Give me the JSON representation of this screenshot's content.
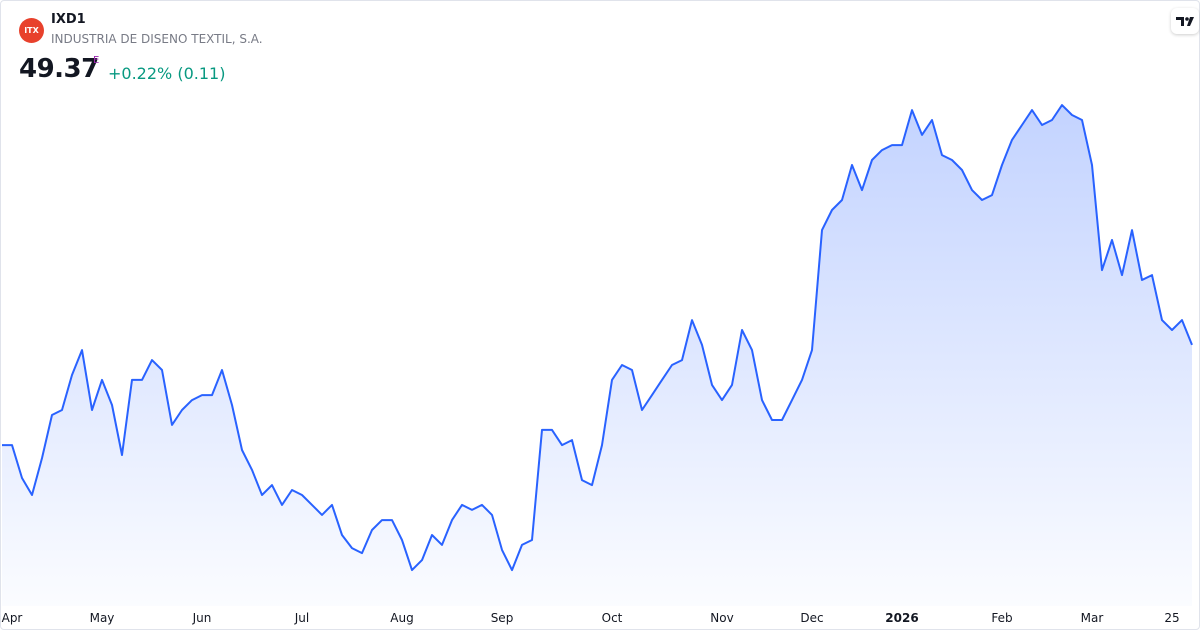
{
  "header": {
    "logo": "ITX",
    "symbol": "IXD1",
    "name": "INDUSTRIA DE DISENO TEXTIL, S.A.",
    "price": "49.37",
    "price_flag": "E",
    "change": "+0.22% (0.11)"
  },
  "chart_data": {
    "type": "area-line",
    "color": "#2962ff",
    "ylim": [
      39.5,
      59.5
    ],
    "categories": [
      null,
      "Apr",
      null,
      null,
      null,
      null,
      null,
      null,
      null,
      null,
      "May",
      null,
      null,
      null,
      null,
      null,
      null,
      null,
      null,
      null,
      "Jun",
      null,
      null,
      null,
      null,
      null,
      null,
      null,
      null,
      null,
      "Jul",
      null,
      null,
      null,
      null,
      null,
      null,
      null,
      null,
      null,
      "Aug",
      null,
      null,
      null,
      null,
      null,
      null,
      null,
      null,
      null,
      "Sep",
      null,
      null,
      null,
      null,
      null,
      null,
      null,
      null,
      null,
      null,
      "Oct",
      null,
      null,
      null,
      null,
      null,
      null,
      null,
      null,
      null,
      null,
      "Nov",
      null,
      null,
      null,
      null,
      null,
      null,
      null,
      null,
      "Dec",
      null,
      null,
      null,
      null,
      null,
      null,
      null,
      null,
      "2026",
      null,
      null,
      null,
      null,
      null,
      null,
      null,
      null,
      null,
      "Feb",
      null,
      null,
      null,
      null,
      null,
      null,
      null,
      null,
      "Mar",
      null,
      null,
      null,
      null,
      null,
      null,
      null,
      "25",
      null,
      null
    ],
    "values": [
      45.54,
      45.54,
      44.28,
      43.63,
      45.04,
      46.69,
      46.88,
      48.22,
      49.17,
      46.88,
      48.03,
      47.07,
      45.16,
      48.03,
      48.03,
      48.79,
      48.41,
      46.31,
      46.88,
      47.26,
      47.45,
      47.45,
      48.41,
      47.07,
      45.35,
      44.59,
      43.63,
      44.01,
      43.25,
      43.82,
      43.63,
      43.25,
      42.87,
      43.25,
      42.1,
      41.6,
      41.41,
      42.29,
      42.67,
      42.67,
      41.91,
      40.76,
      41.14,
      42.1,
      41.72,
      42.67,
      43.25,
      43.06,
      43.25,
      42.87,
      41.53,
      40.76,
      41.72,
      41.91,
      46.12,
      46.12,
      45.54,
      45.73,
      44.2,
      44.01,
      45.54,
      48.03,
      48.6,
      48.41,
      46.88,
      47.45,
      48.03,
      48.6,
      48.79,
      50.32,
      49.37,
      47.84,
      47.26,
      47.84,
      49.94,
      49.17,
      47.26,
      46.5,
      46.5,
      47.26,
      48.03,
      49.17,
      53.76,
      54.53,
      54.91,
      56.25,
      55.29,
      56.44,
      56.82,
      57.01,
      57.01,
      58.35,
      57.4,
      57.97,
      56.63,
      56.44,
      56.06,
      55.29,
      54.91,
      55.1,
      56.25,
      57.21,
      57.78,
      58.35,
      57.78,
      57.97,
      58.54,
      58.16,
      57.97,
      56.25,
      52.23,
      53.38,
      52.04,
      53.76,
      51.85,
      52.04,
      50.32,
      49.94,
      50.32,
      49.37
    ]
  }
}
